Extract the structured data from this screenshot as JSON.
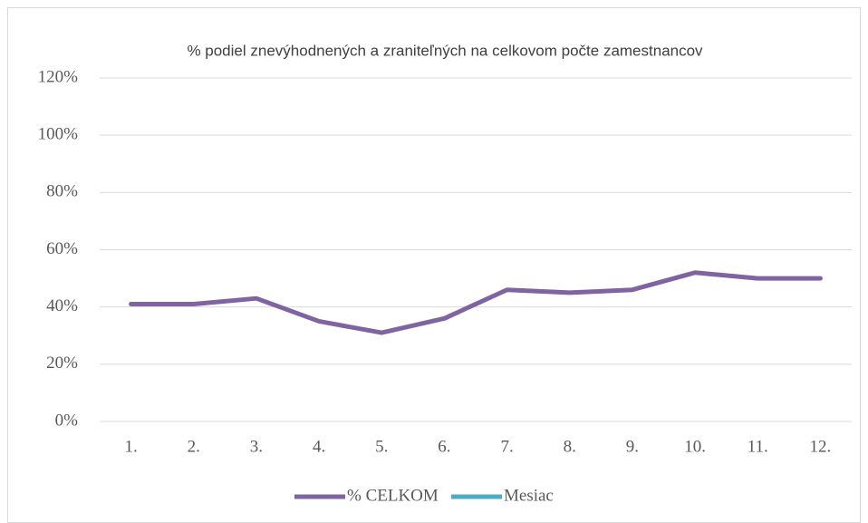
{
  "chart_data": {
    "type": "line",
    "title": "% podiel znevýhodnených a zraniteľných na celkovom počte zamestnancov",
    "categories": [
      "1.",
      "2.",
      "3.",
      "4.",
      "5.",
      "6.",
      "7.",
      "8.",
      "9.",
      "10.",
      "11.",
      "12."
    ],
    "series": [
      {
        "name": "% CELKOM",
        "color": "#8064a2",
        "values": [
          41,
          41,
          43,
          35,
          31,
          36,
          46,
          45,
          46,
          52,
          50,
          50
        ]
      },
      {
        "name": "Mesiac",
        "color": "#4bacc6",
        "values": [
          null,
          null,
          null,
          null,
          null,
          null,
          null,
          null,
          null,
          null,
          null,
          null
        ]
      }
    ],
    "ylim": [
      0,
      120
    ],
    "yticks": [
      {
        "value": 0,
        "label": "0%"
      },
      {
        "value": 20,
        "label": "20%"
      },
      {
        "value": 40,
        "label": "40%"
      },
      {
        "value": 60,
        "label": "60%"
      },
      {
        "value": 80,
        "label": "80%"
      },
      {
        "value": 100,
        "label": "100%"
      },
      {
        "value": 120,
        "label": "120%"
      }
    ],
    "grid": true,
    "legend": "bottom"
  }
}
